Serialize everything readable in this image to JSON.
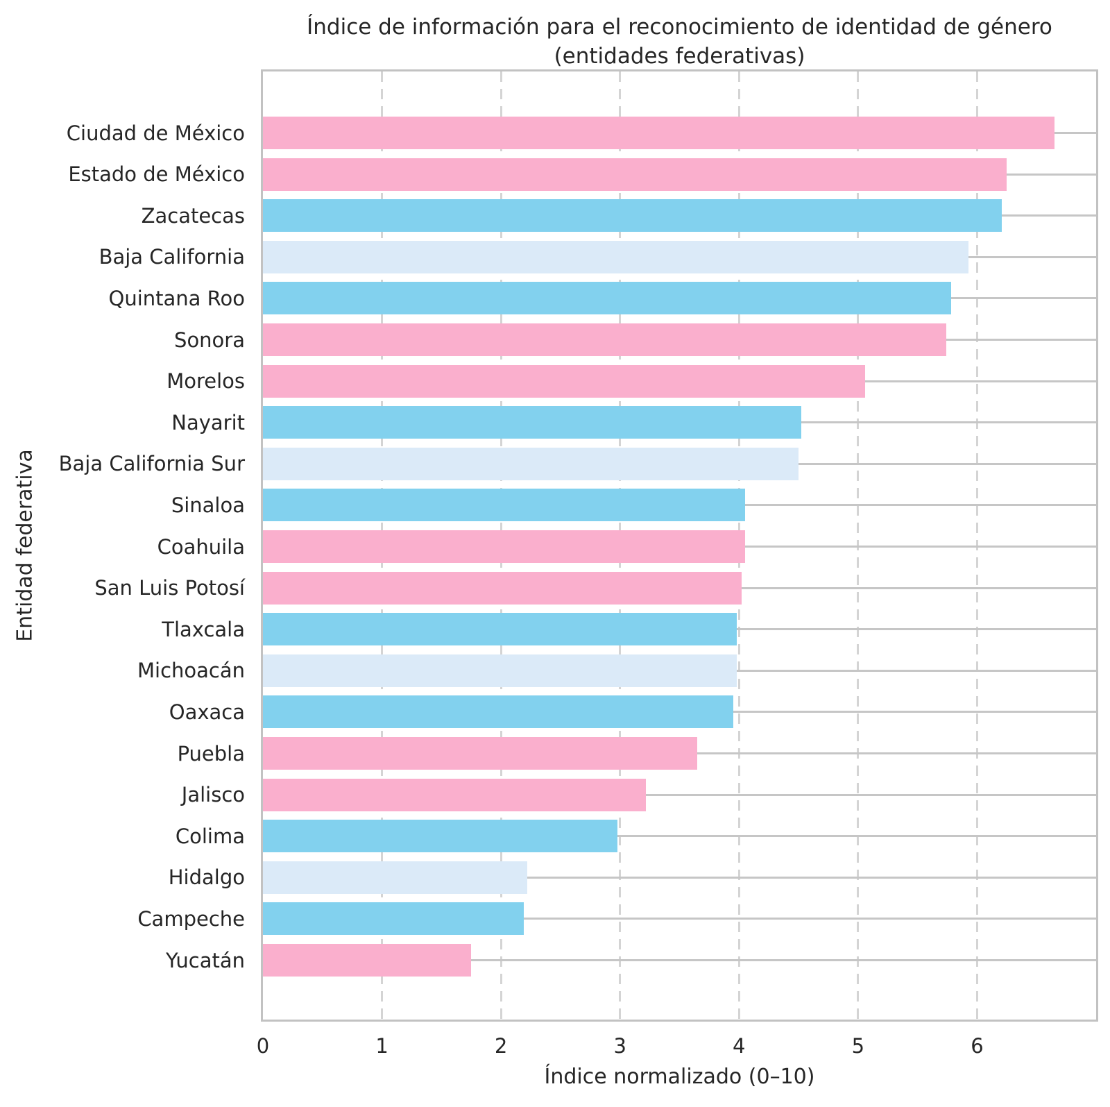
{
  "title": {
    "line1": "Índice de información para el reconocimiento de identidad de género",
    "line2": "(entidades federativas)"
  },
  "x_axis": {
    "label": "Índice normalizado (0–10)",
    "ticks": [
      "0",
      "1",
      "2",
      "3",
      "4",
      "5",
      "6"
    ],
    "max": 7
  },
  "y_axis": {
    "label": "Entidad federativa"
  },
  "palette": {
    "pink": "#FAAFCD",
    "blue": "#82D1EE",
    "lightblue": "#DBEAF8"
  },
  "chart_data": {
    "type": "bar",
    "orientation": "horizontal",
    "title": "Índice de información para el reconocimiento de identidad de género (entidades federativas)",
    "xlabel": "Índice normalizado (0–10)",
    "ylabel": "Entidad federativa",
    "xlim": [
      0,
      7
    ],
    "xticks": [
      0,
      1,
      2,
      3,
      4,
      5,
      6
    ],
    "grid": {
      "vertical": "dashed",
      "horizontal": "solid"
    },
    "legend": "none",
    "categories": [
      "Ciudad de México",
      "Estado de México",
      "Zacatecas",
      "Baja California",
      "Quintana Roo",
      "Sonora",
      "Morelos",
      "Nayarit",
      "Baja California Sur",
      "Sinaloa",
      "Coahuila",
      "San Luis Potosí",
      "Tlaxcala",
      "Michoacán",
      "Oaxaca",
      "Puebla",
      "Jalisco",
      "Colima",
      "Hidalgo",
      "Campeche",
      "Yucatán"
    ],
    "values": [
      6.65,
      6.25,
      6.21,
      5.93,
      5.78,
      5.74,
      5.06,
      4.52,
      4.5,
      4.05,
      4.05,
      4.02,
      3.98,
      3.98,
      3.95,
      3.65,
      3.22,
      2.98,
      2.22,
      2.19,
      1.75
    ],
    "bar_colors": [
      "pink",
      "pink",
      "blue",
      "lightblue",
      "blue",
      "pink",
      "pink",
      "blue",
      "lightblue",
      "blue",
      "pink",
      "pink",
      "blue",
      "lightblue",
      "blue",
      "pink",
      "pink",
      "blue",
      "lightblue",
      "blue",
      "pink"
    ]
  }
}
